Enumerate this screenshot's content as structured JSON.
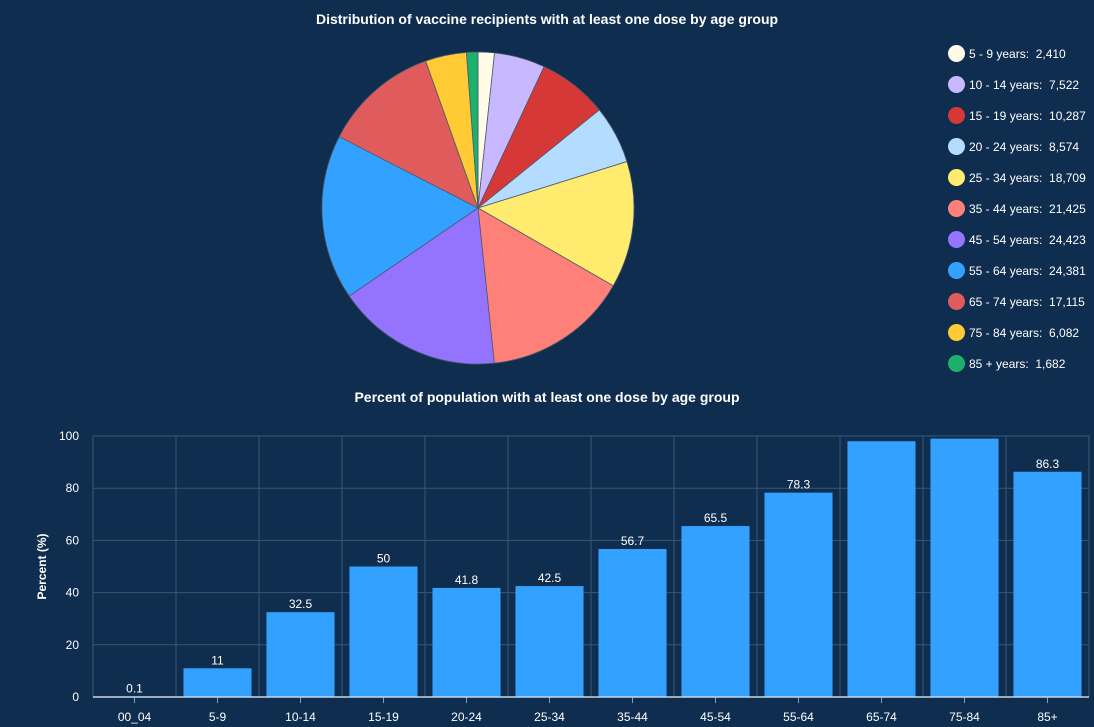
{
  "pie_title": "Distribution of vaccine recipients with at least one dose by age group",
  "bar_title": "Percent of population with at least one dose by age group",
  "chart_data": [
    {
      "type": "pie",
      "title": "Distribution of vaccine recipients with at least one dose by age group",
      "legend_position": "right",
      "slices": [
        {
          "label": "5 - 9 years",
          "value": 2410,
          "value_text": "2,410",
          "color": "#fffbe6"
        },
        {
          "label": "10 - 14 years",
          "value": 7522,
          "value_text": "7,522",
          "color": "#c8b8ff"
        },
        {
          "label": "15 - 19 years",
          "value": 10287,
          "value_text": "10,287",
          "color": "#d63838"
        },
        {
          "label": "20 - 24 years",
          "value": 8574,
          "value_text": "8,574",
          "color": "#b4dcff"
        },
        {
          "label": "25 - 34 years",
          "value": 18709,
          "value_text": "18,709",
          "color": "#ffeb6e"
        },
        {
          "label": "35 - 44 years",
          "value": 21425,
          "value_text": "21,425",
          "color": "#ff8078"
        },
        {
          "label": "45 - 54 years",
          "value": 24423,
          "value_text": "24,423",
          "color": "#9473ff"
        },
        {
          "label": "55 - 64 years",
          "value": 24381,
          "value_text": "24,381",
          "color": "#33a1ff"
        },
        {
          "label": "65 - 74 years",
          "value": 17115,
          "value_text": "17,115",
          "color": "#e05c5c"
        },
        {
          "label": "75 - 84 years",
          "value": 6082,
          "value_text": "6,082",
          "color": "#ffca33"
        },
        {
          "label": "85 + years",
          "value": 1682,
          "value_text": "1,682",
          "color": "#1cb06b"
        }
      ]
    },
    {
      "type": "bar",
      "title": "Percent of population with at least one dose by age group",
      "xlabel": "",
      "ylabel": "Percent (%)",
      "ylim": [
        0,
        100
      ],
      "yticks": [
        0,
        20,
        40,
        60,
        80,
        100
      ],
      "grid": true,
      "bar_color": "#33a1ff",
      "categories": [
        "00_04",
        "5-9",
        "10-14",
        "15-19",
        "20-24",
        "25-34",
        "35-44",
        "45-54",
        "55-64",
        "65-74",
        "75-84",
        "85+"
      ],
      "values": [
        0.1,
        11,
        32.5,
        50,
        41.8,
        42.5,
        56.7,
        65.5,
        78.3,
        98,
        99,
        86.3
      ],
      "data_labels": [
        "0.1",
        "11",
        "32.5",
        "50",
        "41.8",
        "42.5",
        "56.7",
        "65.5",
        "78.3",
        "",
        "",
        "86.3"
      ]
    }
  ]
}
